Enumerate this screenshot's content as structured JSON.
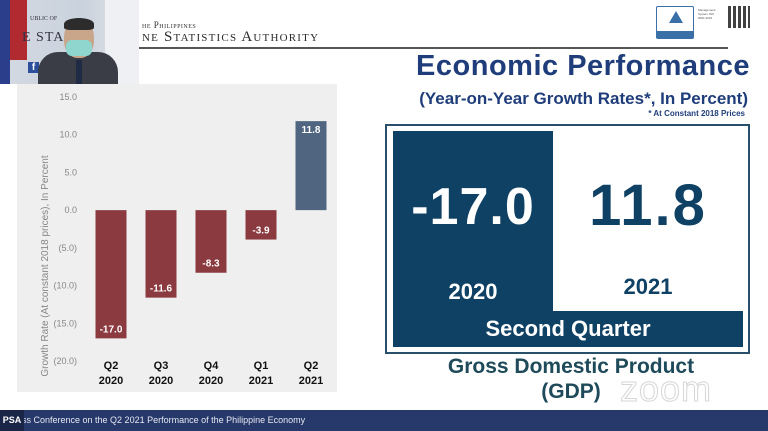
{
  "header": {
    "agency_line_small": "he Philippines",
    "agency_line_big": "ne Statistics Authority",
    "certification_text": "Management System ISO 9001:2015",
    "certification_badge": "TÜV Rheinland Certified"
  },
  "webcam": {
    "facebook_icon": "f",
    "backdrop_small": "UBLIC OF",
    "backdrop_big": "E STA"
  },
  "slide": {
    "title": "Economic Performance",
    "subtitle": "(Year-on-Year Growth Rates*, In Percent)",
    "footnote": "* At Constant 2018 Prices",
    "gdp_box": {
      "value_2020": "-17.0",
      "year_2020": "2020",
      "value_2021": "11.8",
      "year_2021": "2021",
      "period_label": "Second Quarter"
    },
    "gdp_label_line1": "Gross Domestic Product",
    "gdp_label_line2": "(GDP)"
  },
  "chart_data": {
    "type": "bar",
    "title": "",
    "xlabel": "",
    "ylabel": "Growth Rate (At constant 2018 prices), In Percent",
    "categories": [
      "Q2 2020",
      "Q3 2020",
      "Q4 2020",
      "Q1 2021",
      "Q2 2021"
    ],
    "category_lines": [
      [
        "Q2",
        "2020"
      ],
      [
        "Q3",
        "2020"
      ],
      [
        "Q4",
        "2020"
      ],
      [
        "Q1",
        "2021"
      ],
      [
        "Q2",
        "2021"
      ]
    ],
    "values": [
      -17.0,
      -11.6,
      -8.3,
      -3.9,
      11.8
    ],
    "data_labels": [
      "-17.0",
      "-11.6",
      "-8.3",
      "-3.9",
      "11.8"
    ],
    "ylim": [
      -20,
      15
    ],
    "yticks": [
      15,
      10,
      5,
      0,
      -5,
      -10,
      -15,
      -20
    ],
    "ytick_labels": [
      "15.0",
      "10.0",
      "5.0",
      "0.0",
      "(5.0)",
      "(10.0)",
      "(15.0)",
      "(20.0)"
    ],
    "colors": {
      "negative": "#8b3a40",
      "positive": "#4f6580"
    },
    "grid": false,
    "legend": "none"
  },
  "footer": {
    "logo": "PSA",
    "ticker": "ss Conference on the Q2 2021 Performance of the Philippine Economy"
  },
  "overlay": {
    "watermark": "zoom"
  }
}
